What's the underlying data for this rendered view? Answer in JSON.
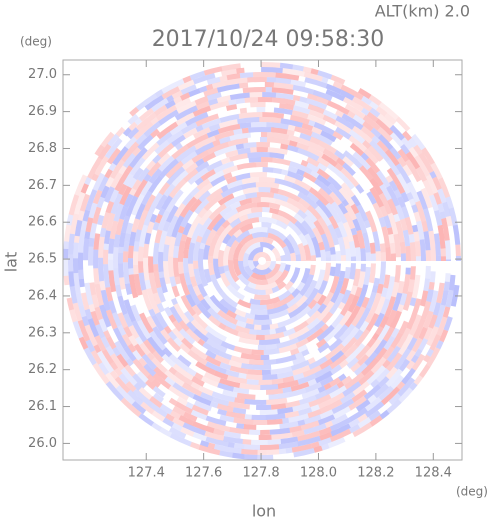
{
  "chart_data": {
    "type": "radar-ppi",
    "title": "2017/10/24 09:58:30",
    "subtitle": "ALT(km) 2.0",
    "x_label": "lon",
    "y_label": "lat",
    "x_unit": "(deg)",
    "y_unit": "(deg)",
    "xlim": [
      127.11,
      128.5
    ],
    "ylim": [
      25.955,
      27.04
    ],
    "xticks": [
      127.4,
      127.6,
      127.8,
      {
        "value": 128.0,
        "label": "128.0"
      },
      128.2,
      128.4
    ],
    "yticks": [
      {
        "value": 26.0,
        "label": "26.0"
      },
      26.1,
      26.2,
      26.3,
      26.4,
      26.5,
      26.6,
      26.7,
      26.8,
      26.9,
      {
        "value": 27.0,
        "label": "27.0"
      }
    ]
  }
}
